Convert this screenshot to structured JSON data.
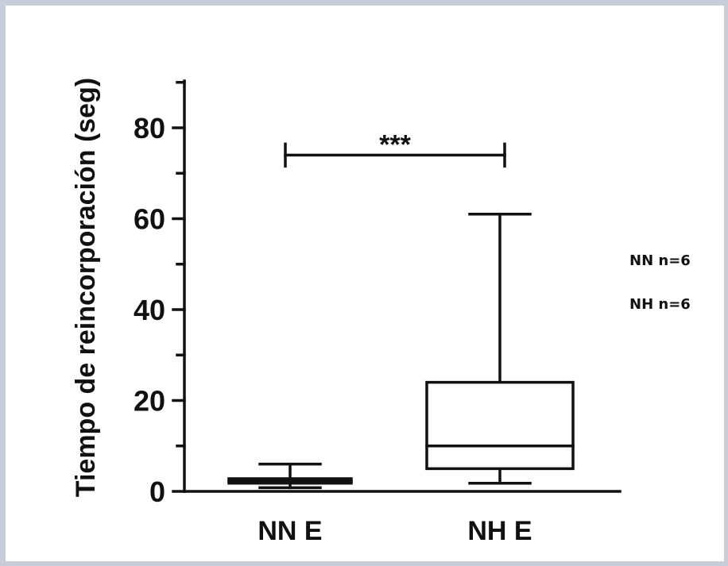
{
  "chart_data": {
    "type": "box",
    "ylabel": "Tiempo de reincorporación (seg)",
    "xlabel": "",
    "ylim": [
      0,
      90
    ],
    "yticks": [
      0,
      20,
      40,
      60,
      80
    ],
    "categories": [
      "NN E",
      "NH E"
    ],
    "boxes": [
      {
        "category": "NN E",
        "min": 0.8,
        "q1": 1.8,
        "median": 2.3,
        "q3": 2.8,
        "max": 6
      },
      {
        "category": "NH E",
        "min": 1.8,
        "q1": 5,
        "median": 10,
        "q3": 24,
        "max": 61
      }
    ],
    "significance": {
      "label": "***",
      "between": [
        "NN E",
        "NH E"
      ],
      "y": 74
    },
    "annotations": [
      "NN n=6",
      "NH n=6"
    ],
    "grid": false,
    "legend": "none"
  }
}
